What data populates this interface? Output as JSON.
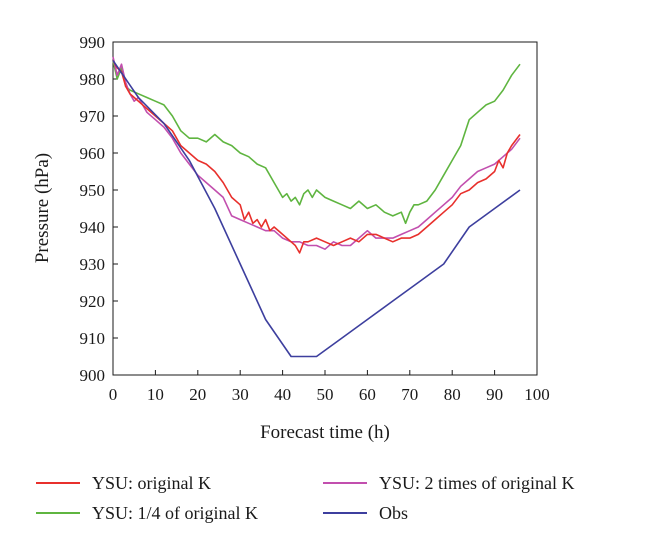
{
  "chart_data": {
    "type": "line",
    "title": "",
    "xlabel": "Forecast time (h)",
    "ylabel": "Pressure (hPa)",
    "xlim": [
      0,
      100
    ],
    "ylim": [
      900,
      990
    ],
    "x_ticks": [
      0,
      10,
      20,
      30,
      40,
      50,
      60,
      70,
      80,
      90,
      100
    ],
    "y_ticks": [
      900,
      910,
      920,
      930,
      940,
      950,
      960,
      970,
      980,
      990
    ],
    "grid": false,
    "legend_position": "bottom",
    "series": [
      {
        "name": "YSU: original K",
        "color": "#e8302c",
        "x": [
          0,
          1,
          2,
          3,
          4,
          5,
          6,
          8,
          10,
          12,
          14,
          16,
          18,
          20,
          22,
          24,
          26,
          28,
          30,
          31,
          32,
          33,
          34,
          35,
          36,
          37,
          38,
          40,
          42,
          43,
          44,
          45,
          46,
          48,
          50,
          52,
          54,
          56,
          58,
          60,
          62,
          64,
          66,
          68,
          70,
          72,
          74,
          76,
          78,
          80,
          82,
          84,
          86,
          88,
          90,
          91,
          92,
          93,
          94,
          96
        ],
        "values": [
          985,
          983,
          982,
          978,
          976,
          975,
          974,
          972,
          970,
          968,
          966,
          962,
          960,
          958,
          957,
          955,
          952,
          948,
          946,
          942,
          944,
          941,
          942,
          940,
          942,
          939,
          940,
          938,
          936,
          935,
          933,
          936,
          936,
          937,
          936,
          935,
          936,
          937,
          936,
          938,
          938,
          937,
          936,
          937,
          937,
          938,
          940,
          942,
          944,
          946,
          949,
          950,
          952,
          953,
          955,
          958,
          956,
          960,
          962,
          965
        ]
      },
      {
        "name": "YSU: 1/4 of original K",
        "color": "#5fb540",
        "x": [
          0,
          1,
          2,
          3,
          4,
          6,
          8,
          10,
          12,
          14,
          16,
          18,
          20,
          22,
          24,
          26,
          28,
          30,
          32,
          34,
          36,
          38,
          40,
          41,
          42,
          43,
          44,
          45,
          46,
          47,
          48,
          50,
          52,
          54,
          56,
          58,
          60,
          62,
          64,
          66,
          68,
          69,
          70,
          71,
          72,
          74,
          76,
          78,
          80,
          82,
          84,
          86,
          88,
          90,
          92,
          94,
          96
        ],
        "values": [
          985,
          980,
          983,
          978,
          977,
          976,
          975,
          974,
          973,
          970,
          966,
          964,
          964,
          963,
          965,
          963,
          962,
          960,
          959,
          957,
          956,
          952,
          948,
          949,
          947,
          948,
          946,
          949,
          950,
          948,
          950,
          948,
          947,
          946,
          945,
          947,
          945,
          946,
          944,
          943,
          944,
          941,
          944,
          946,
          946,
          947,
          950,
          954,
          958,
          962,
          969,
          971,
          973,
          974,
          977,
          981,
          984
        ]
      },
      {
        "name": "YSU: 2 times of original K",
        "color": "#c24fae",
        "x": [
          0,
          1,
          2,
          3,
          4,
          5,
          6,
          8,
          10,
          12,
          14,
          16,
          18,
          20,
          22,
          24,
          26,
          28,
          30,
          32,
          34,
          36,
          38,
          40,
          42,
          44,
          46,
          48,
          50,
          52,
          54,
          56,
          58,
          60,
          62,
          64,
          66,
          68,
          70,
          72,
          74,
          76,
          78,
          80,
          82,
          84,
          86,
          88,
          90,
          92,
          94,
          96
        ],
        "values": [
          986,
          981,
          984,
          979,
          976,
          974,
          975,
          971,
          969,
          967,
          964,
          960,
          957,
          954,
          952,
          950,
          948,
          943,
          942,
          941,
          940,
          939,
          939,
          937,
          936,
          936,
          935,
          935,
          934,
          936,
          935,
          935,
          937,
          939,
          937,
          937,
          937,
          938,
          939,
          940,
          942,
          944,
          946,
          948,
          951,
          953,
          955,
          956,
          957,
          959,
          961,
          964
        ]
      },
      {
        "name": "Obs",
        "color": "#3d3f9e",
        "x": [
          0,
          6,
          12,
          18,
          24,
          30,
          36,
          42,
          48,
          54,
          60,
          66,
          72,
          78,
          84,
          90,
          96
        ],
        "values": [
          985,
          975,
          968,
          958,
          945,
          930,
          915,
          905,
          905,
          910,
          915,
          920,
          925,
          930,
          940,
          945,
          950
        ]
      }
    ]
  },
  "legend": {
    "items": [
      {
        "label": "YSU: original K",
        "color": "#e8302c"
      },
      {
        "label": "YSU: 2 times of original K",
        "color": "#c24fae"
      },
      {
        "label": "YSU: 1/4 of original K",
        "color": "#5fb540"
      },
      {
        "label": "Obs",
        "color": "#3d3f9e"
      }
    ]
  }
}
